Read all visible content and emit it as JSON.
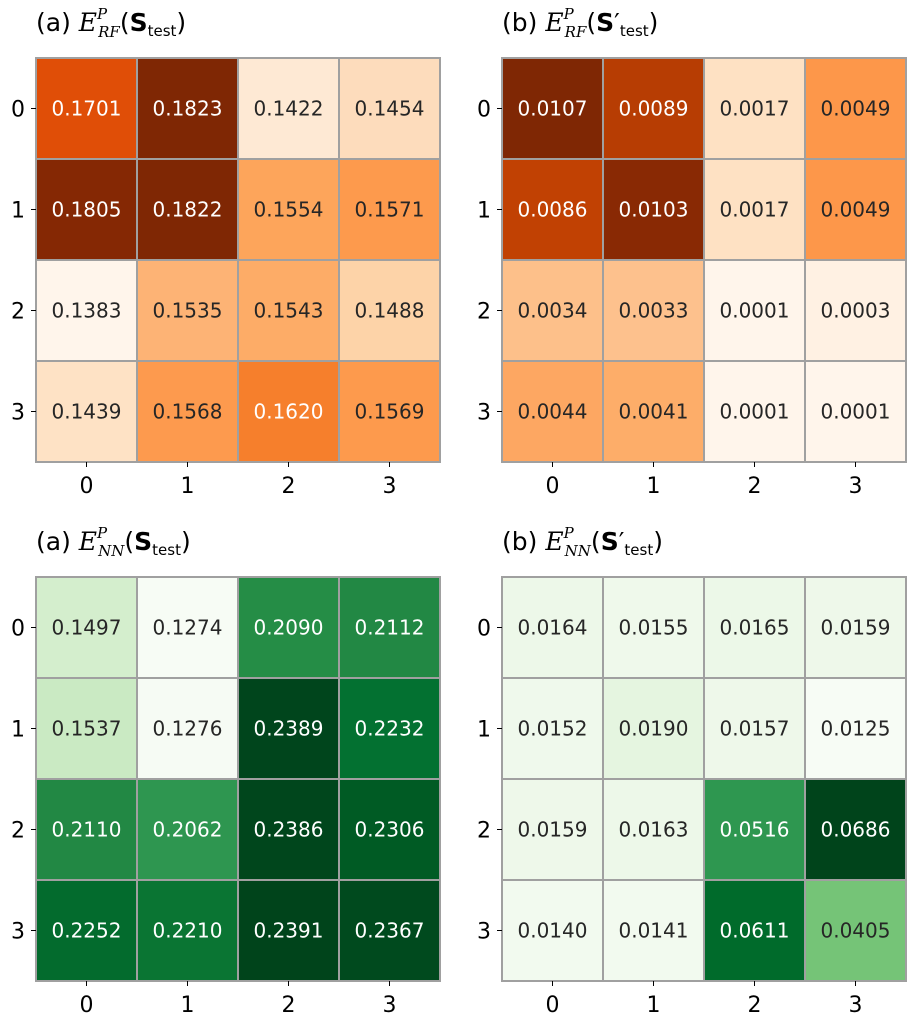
{
  "chart_data": [
    {
      "type": "heatmap",
      "title": {
        "prefix": "(a) ",
        "symbol": "E",
        "superscript": "P",
        "subscript": "RF",
        "argument": "S",
        "prime": "",
        "argument_subscript": "test"
      },
      "colormap": "Oranges",
      "row_labels": [
        "0",
        "1",
        "2",
        "3"
      ],
      "col_labels": [
        "0",
        "1",
        "2",
        "3"
      ],
      "values": [
        [
          0.1701,
          0.1823,
          0.1422,
          0.1454
        ],
        [
          0.1805,
          0.1822,
          0.1554,
          0.1571
        ],
        [
          0.1383,
          0.1535,
          0.1543,
          0.1488
        ],
        [
          0.1439,
          0.1568,
          0.162,
          0.1569
        ]
      ],
      "cell_labels": [
        [
          "0.1701",
          "0.1823",
          "0.1422",
          "0.1454"
        ],
        [
          "0.1805",
          "0.1822",
          "0.1554",
          "0.1571"
        ],
        [
          "0.1383",
          "0.1535",
          "0.1543",
          "0.1488"
        ],
        [
          "0.1439",
          "0.1568",
          "0.1620",
          "0.1569"
        ]
      ],
      "cell_colors": [
        [
          "#e04e07",
          "#7f2704",
          "#fee9d4",
          "#fddcbc"
        ],
        [
          "#852804",
          "#7f2704",
          "#fda55b",
          "#fd9a4d"
        ],
        [
          "#fff5eb",
          "#fdb375",
          "#fdac67",
          "#fdd3a8"
        ],
        [
          "#fee2c5",
          "#fd9a4e",
          "#f67f2c",
          "#fd9a4d"
        ]
      ],
      "text_colors": [
        [
          "#ffffff",
          "#ffffff",
          "#262626",
          "#262626"
        ],
        [
          "#ffffff",
          "#ffffff",
          "#262626",
          "#262626"
        ],
        [
          "#262626",
          "#262626",
          "#262626",
          "#262626"
        ],
        [
          "#262626",
          "#262626",
          "#ffffff",
          "#262626"
        ]
      ]
    },
    {
      "type": "heatmap",
      "title": {
        "prefix": "(b) ",
        "symbol": "E",
        "superscript": "P",
        "subscript": "RF",
        "argument": "S",
        "prime": "′",
        "argument_subscript": "test"
      },
      "colormap": "Oranges",
      "row_labels": [
        "0",
        "1",
        "2",
        "3"
      ],
      "col_labels": [
        "0",
        "1",
        "2",
        "3"
      ],
      "values": [
        [
          0.0107,
          0.0089,
          0.0017,
          0.0049
        ],
        [
          0.0086,
          0.0103,
          0.0017,
          0.0049
        ],
        [
          0.0034,
          0.0033,
          0.0001,
          0.0003
        ],
        [
          0.0044,
          0.0041,
          0.0001,
          0.0001
        ]
      ],
      "cell_labels": [
        [
          "0.0107",
          "0.0089",
          "0.0017",
          "0.0049"
        ],
        [
          "0.0086",
          "0.0103",
          "0.0017",
          "0.0049"
        ],
        [
          "0.0034",
          "0.0033",
          "0.0001",
          "0.0003"
        ],
        [
          "0.0044",
          "0.0041",
          "0.0001",
          "0.0001"
        ]
      ],
      "cell_colors": [
        [
          "#7f2704",
          "#b73d03",
          "#fee1c3",
          "#fd974a"
        ],
        [
          "#c14103",
          "#892904",
          "#fee1c3",
          "#fd974a"
        ],
        [
          "#fdc08a",
          "#fdc18d",
          "#fff5eb",
          "#fff1e3"
        ],
        [
          "#fda762",
          "#fdad69",
          "#fff5eb",
          "#fff5eb"
        ]
      ],
      "text_colors": [
        [
          "#ffffff",
          "#ffffff",
          "#262626",
          "#262626"
        ],
        [
          "#ffffff",
          "#ffffff",
          "#262626",
          "#262626"
        ],
        [
          "#262626",
          "#262626",
          "#262626",
          "#262626"
        ],
        [
          "#262626",
          "#262626",
          "#262626",
          "#262626"
        ]
      ]
    },
    {
      "type": "heatmap",
      "title": {
        "prefix": "(a) ",
        "symbol": "E",
        "superscript": "P",
        "subscript": "NN",
        "argument": "S",
        "prime": "",
        "argument_subscript": "test"
      },
      "colormap": "Greens",
      "row_labels": [
        "0",
        "1",
        "2",
        "3"
      ],
      "col_labels": [
        "0",
        "1",
        "2",
        "3"
      ],
      "values": [
        [
          0.1497,
          0.1274,
          0.209,
          0.2112
        ],
        [
          0.1537,
          0.1276,
          0.2389,
          0.2232
        ],
        [
          0.211,
          0.2062,
          0.2386,
          0.2306
        ],
        [
          0.2252,
          0.221,
          0.2391,
          0.2367
        ]
      ],
      "cell_labels": [
        [
          "0.1497",
          "0.1274",
          "0.2090",
          "0.2112"
        ],
        [
          "0.1537",
          "0.1276",
          "0.2389",
          "0.2232"
        ],
        [
          "0.2110",
          "0.2062",
          "0.2386",
          "0.2306"
        ],
        [
          "0.2252",
          "0.2210",
          "0.2391",
          "0.2367"
        ]
      ],
      "cell_colors": [
        [
          "#d4eecd",
          "#f7fcf5",
          "#258d46",
          "#228844"
        ],
        [
          "#caeac3",
          "#f6fbf4",
          "#00451c",
          "#037131"
        ],
        [
          "#228844",
          "#2e9650",
          "#00461c",
          "#005b24"
        ],
        [
          "#036b2d",
          "#0a7533",
          "#00441b",
          "#004a1e"
        ]
      ],
      "text_colors": [
        [
          "#262626",
          "#262626",
          "#ffffff",
          "#ffffff"
        ],
        [
          "#262626",
          "#262626",
          "#ffffff",
          "#ffffff"
        ],
        [
          "#ffffff",
          "#ffffff",
          "#ffffff",
          "#ffffff"
        ],
        [
          "#ffffff",
          "#ffffff",
          "#ffffff",
          "#ffffff"
        ]
      ]
    },
    {
      "type": "heatmap",
      "title": {
        "prefix": "(b) ",
        "symbol": "E",
        "superscript": "P",
        "subscript": "NN",
        "argument": "S",
        "prime": "′",
        "argument_subscript": "test"
      },
      "colormap": "Greens",
      "row_labels": [
        "0",
        "1",
        "2",
        "3"
      ],
      "col_labels": [
        "0",
        "1",
        "2",
        "3"
      ],
      "values": [
        [
          0.0164,
          0.0155,
          0.0165,
          0.0159
        ],
        [
          0.0152,
          0.019,
          0.0157,
          0.0125
        ],
        [
          0.0159,
          0.0163,
          0.0516,
          0.0686
        ],
        [
          0.014,
          0.0141,
          0.0611,
          0.0405
        ]
      ],
      "cell_labels": [
        [
          "0.0164",
          "0.0155",
          "0.0165",
          "0.0159"
        ],
        [
          "0.0152",
          "0.0190",
          "0.0157",
          "0.0125"
        ],
        [
          "0.0159",
          "0.0163",
          "0.0516",
          "0.0686"
        ],
        [
          "0.0140",
          "0.0141",
          "0.0611",
          "0.0405"
        ]
      ],
      "cell_colors": [
        [
          "#edf8e9",
          "#eff9eb",
          "#ecf8e8",
          "#eef8ea"
        ],
        [
          "#eff9ec",
          "#e5f5e0",
          "#eef8ea",
          "#f7fcf5"
        ],
        [
          "#eef8ea",
          "#edf8e9",
          "#2e9750",
          "#00441b"
        ],
        [
          "#f2faef",
          "#f2faef",
          "#006b2b",
          "#75c477"
        ]
      ],
      "text_colors": [
        [
          "#262626",
          "#262626",
          "#262626",
          "#262626"
        ],
        [
          "#262626",
          "#262626",
          "#262626",
          "#262626"
        ],
        [
          "#262626",
          "#262626",
          "#ffffff",
          "#ffffff"
        ],
        [
          "#262626",
          "#262626",
          "#ffffff",
          "#262626"
        ]
      ]
    }
  ]
}
